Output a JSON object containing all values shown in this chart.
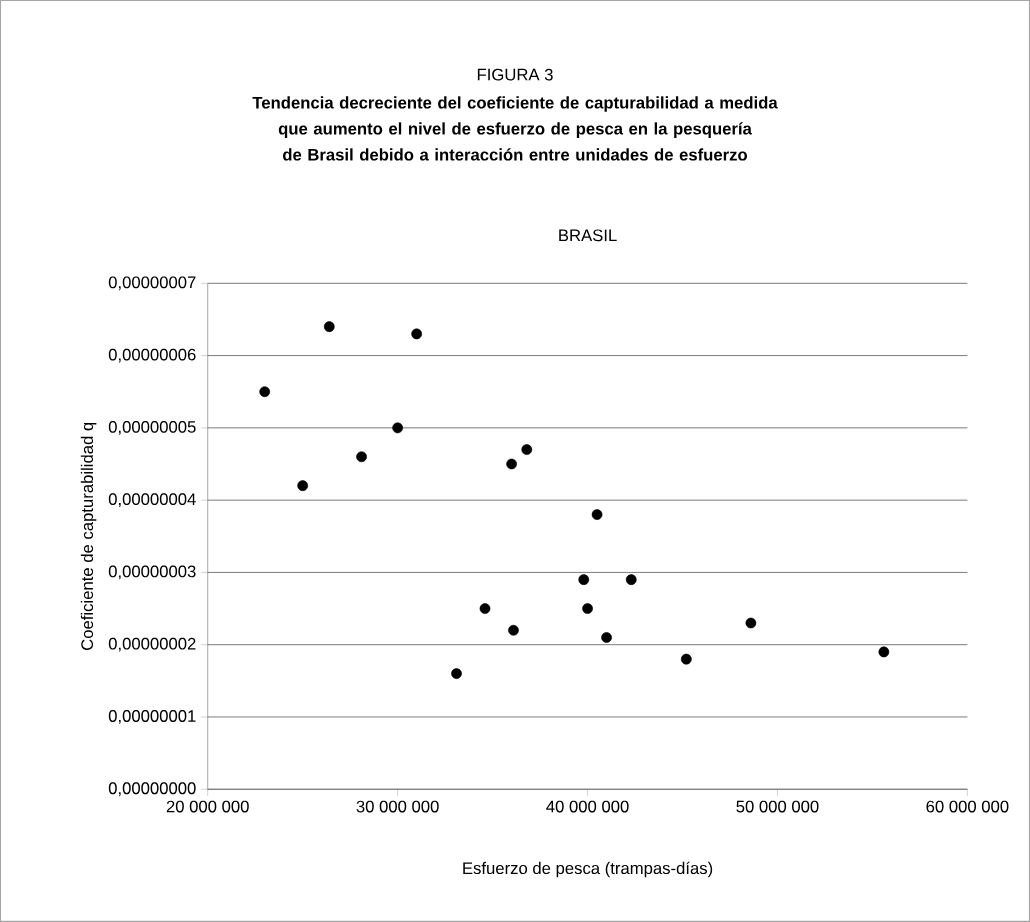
{
  "chart_data": {
    "type": "scatter",
    "title": "Tendencia decreciente del coeficiente de capturabilidad a medida que aumento el nivel de esfuerzo de pesca en la pesquería de Brasil debido a interacción entre unidades de esfuerzo",
    "subtitle": "BRASIL",
    "annotations": [
      "FIGURA 3"
    ],
    "xlabel": "Esfuerzo de pesca (trampas-días)",
    "ylabel": "Coeficiente de capturabilidad q",
    "x": [
      26400000,
      31000000,
      23000000,
      30000000,
      28100000,
      25000000,
      36000000,
      36800000,
      40500000,
      39800000,
      42300000,
      34600000,
      40000000,
      36100000,
      41000000,
      33100000,
      55600000,
      45200000,
      48600000
    ],
    "values": [
      6.4e-08,
      6.3e-08,
      5.5e-08,
      5e-08,
      4.6e-08,
      4.2e-08,
      4.5e-08,
      4.7e-08,
      3.8e-08,
      2.9e-08,
      2.9e-08,
      2.5e-08,
      2.5e-08,
      2.2e-08,
      2.1e-08,
      1.6e-08,
      1.9e-08,
      1.8e-08,
      2.3e-08
    ],
    "color": "#000000",
    "marker": "circle",
    "grid": "y",
    "xlim": [
      20000000,
      60000000
    ],
    "xticks": [
      {
        "value": 20000000,
        "label": "20 000 000"
      },
      {
        "value": 30000000,
        "label": "30 000 000"
      },
      {
        "value": 40000000,
        "label": "40 000 000"
      },
      {
        "value": 50000000,
        "label": "50 000 000"
      },
      {
        "value": 60000000,
        "label": "60 000 000"
      }
    ],
    "ylim": [
      0,
      7e-08
    ],
    "yticks": [
      {
        "value": 0,
        "label": "0,00000000"
      },
      {
        "value": 1e-08,
        "label": "0,00000001"
      },
      {
        "value": 2e-08,
        "label": "0,00000002"
      },
      {
        "value": 3e-08,
        "label": "0,00000003"
      },
      {
        "value": 4e-08,
        "label": "0,00000004"
      },
      {
        "value": 5e-08,
        "label": "0,00000005"
      },
      {
        "value": 6e-08,
        "label": "0,00000006"
      },
      {
        "value": 7e-08,
        "label": "0,00000007"
      }
    ]
  }
}
